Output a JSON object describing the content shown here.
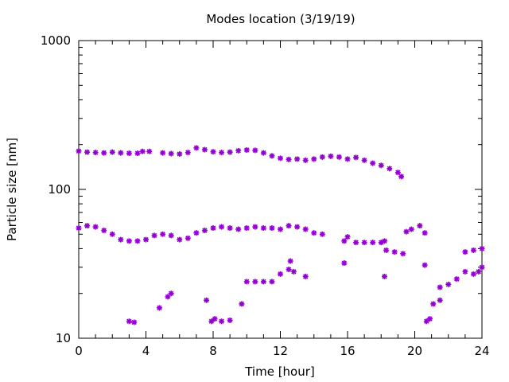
{
  "chart_data": {
    "type": "scatter",
    "title": "Modes location (3/19/19)",
    "xlabel": "Time [hour]",
    "ylabel": "Particle size [nm]",
    "xlim": [
      0,
      24
    ],
    "ylim": [
      10,
      1000
    ],
    "yscale": "log",
    "xticks": [
      "0",
      "4",
      "8",
      "12",
      "16",
      "20",
      "24"
    ],
    "yticks": [
      "10",
      "100",
      "1000"
    ],
    "grid": false,
    "marker_color": "#9400d3",
    "marker": "star",
    "series": [
      {
        "x": [
          0,
          0.5,
          1,
          1.5,
          2,
          2.5,
          3,
          3.5,
          3.8,
          4.2,
          5,
          5.5,
          6,
          6.5,
          7,
          7.5,
          8,
          8.5,
          9,
          9.5,
          10,
          10.5,
          11,
          11.5,
          12,
          12.5,
          13,
          13.5,
          14,
          14.5,
          15,
          15.5,
          16,
          16.5,
          17,
          17.5,
          18,
          18.5,
          19,
          19.2
        ],
        "y": [
          181,
          178,
          177,
          176,
          178,
          176,
          175,
          175,
          180,
          180,
          176,
          174,
          173,
          177,
          190,
          185,
          179,
          177,
          178,
          182,
          184,
          183,
          176,
          168,
          162,
          159,
          160,
          157,
          160,
          165,
          167,
          165,
          160,
          164,
          157,
          150,
          145,
          138,
          130,
          122
        ]
      },
      {
        "x": [
          0,
          0.5,
          1,
          1.5,
          2,
          2.5,
          3,
          3.5,
          4,
          4.5,
          5,
          5.5,
          6,
          6.5,
          7,
          7.5,
          8,
          8.5,
          9,
          9.5,
          10,
          10.5,
          11,
          11.5,
          12,
          12.5,
          13,
          13.5,
          14,
          14.5,
          15.8,
          16,
          16.5,
          17,
          17.5,
          18,
          18.2
        ],
        "y": [
          55,
          57,
          56,
          53,
          50,
          46,
          45,
          45,
          46,
          49,
          50,
          49,
          46,
          47,
          51,
          53,
          55,
          56,
          55,
          54,
          55,
          56,
          55,
          55,
          54,
          57,
          56,
          54,
          51,
          50,
          45,
          48,
          44,
          44,
          44,
          44,
          45
        ]
      },
      {
        "x": [
          18.3,
          18.8,
          19.3,
          19.5,
          19.8,
          20.3,
          20.6
        ],
        "y": [
          39,
          38,
          37,
          52,
          54,
          57,
          51
        ]
      },
      {
        "x": [
          3,
          3.3,
          4.8,
          5.3,
          5.5,
          7.6,
          7.9,
          8.1,
          8.5,
          9,
          9.7,
          10,
          10.5,
          11,
          11.5,
          12,
          12.5,
          12.6,
          12.8,
          13.5,
          15.8,
          18.2
        ],
        "y": [
          13,
          12.8,
          16,
          19,
          20,
          18,
          13,
          13.5,
          13,
          13.2,
          17,
          24,
          24,
          24,
          24,
          27,
          29,
          33,
          28,
          26,
          32,
          26
        ]
      },
      {
        "x": [
          20.7,
          20.9,
          21.1,
          21.5,
          22,
          22.5,
          23,
          23.5,
          23.8,
          24
        ],
        "y": [
          13,
          13.5,
          17,
          18,
          23,
          25,
          28,
          27,
          28,
          30
        ]
      },
      {
        "x": [
          21.5,
          23,
          23.5,
          24,
          20.6
        ],
        "y": [
          22,
          38,
          39,
          40,
          31
        ]
      }
    ]
  }
}
